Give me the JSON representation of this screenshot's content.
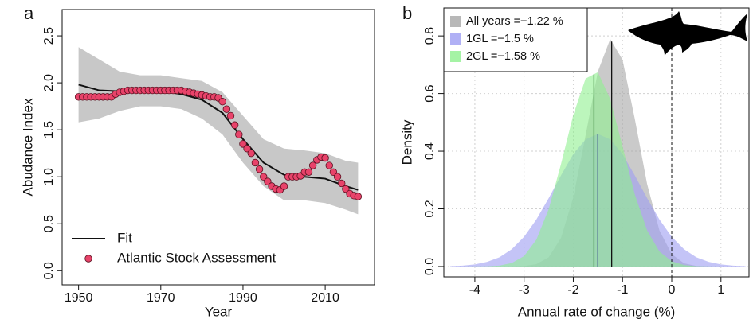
{
  "chart_data": [
    {
      "type": "line",
      "panel_label": "a",
      "xlabel": "Year",
      "ylabel": "Abudance Index",
      "xlim": [
        1946,
        2022
      ],
      "ylim": [
        -0.15,
        2.78
      ],
      "xticks": [
        1950,
        1970,
        1990,
        2010
      ],
      "yticks": [
        {
          "value": 0,
          "label": "0.0"
        },
        0.5,
        {
          "value": 1,
          "label": "1.0"
        },
        1.5,
        {
          "value": 2,
          "label": "2.0"
        },
        2.5
      ],
      "band": {
        "color": "#c8c8c8",
        "x": [
          1950,
          1955,
          1960,
          1965,
          1970,
          1975,
          1980,
          1985,
          1990,
          1995,
          2000,
          2005,
          2010,
          2015,
          2018
        ],
        "upper": [
          2.38,
          2.25,
          2.12,
          2.08,
          2.08,
          2.05,
          2.02,
          1.9,
          1.65,
          1.4,
          1.3,
          1.28,
          1.25,
          1.17,
          1.15
        ],
        "lower": [
          1.58,
          1.62,
          1.7,
          1.75,
          1.75,
          1.72,
          1.62,
          1.45,
          1.15,
          0.9,
          0.75,
          0.75,
          0.72,
          0.65,
          0.6
        ]
      },
      "series": [
        {
          "name": "Fit",
          "style": "line",
          "color": "#111111",
          "x": [
            1950,
            1955,
            1960,
            1965,
            1970,
            1975,
            1980,
            1985,
            1990,
            1995,
            2000,
            2005,
            2010,
            2015,
            2018
          ],
          "values": [
            1.98,
            1.92,
            1.91,
            1.92,
            1.91,
            1.88,
            1.82,
            1.68,
            1.4,
            1.15,
            1.02,
            1.0,
            0.98,
            0.9,
            0.86
          ]
        },
        {
          "name": "Atlantic Stock Assessment",
          "style": "points",
          "color": "#e8436a",
          "x": [
            1950,
            1951,
            1952,
            1953,
            1954,
            1955,
            1956,
            1957,
            1958,
            1959,
            1960,
            1961,
            1962,
            1963,
            1964,
            1965,
            1966,
            1967,
            1968,
            1969,
            1970,
            1971,
            1972,
            1973,
            1974,
            1975,
            1976,
            1977,
            1978,
            1979,
            1980,
            1981,
            1982,
            1983,
            1984,
            1985,
            1986,
            1987,
            1988,
            1989,
            1990,
            1991,
            1992,
            1993,
            1994,
            1995,
            1996,
            1997,
            1998,
            1999,
            2000,
            2001,
            2002,
            2003,
            2004,
            2005,
            2006,
            2007,
            2008,
            2009,
            2010,
            2011,
            2012,
            2013,
            2014,
            2015,
            2016,
            2017,
            2018
          ],
          "values": [
            1.85,
            1.85,
            1.85,
            1.85,
            1.85,
            1.85,
            1.85,
            1.85,
            1.85,
            1.88,
            1.9,
            1.91,
            1.92,
            1.92,
            1.92,
            1.92,
            1.92,
            1.92,
            1.92,
            1.92,
            1.92,
            1.92,
            1.92,
            1.92,
            1.92,
            1.92,
            1.91,
            1.9,
            1.89,
            1.88,
            1.87,
            1.86,
            1.85,
            1.85,
            1.84,
            1.8,
            1.72,
            1.65,
            1.55,
            1.45,
            1.35,
            1.3,
            1.25,
            1.15,
            1.08,
            1.0,
            0.95,
            0.9,
            0.87,
            0.86,
            0.9,
            1.0,
            1.0,
            1.0,
            1.01,
            1.05,
            1.05,
            1.12,
            1.18,
            1.21,
            1.2,
            1.12,
            1.05,
            1.0,
            0.93,
            0.87,
            0.82,
            0.8,
            0.79
          ]
        }
      ]
    },
    {
      "type": "area",
      "panel_label": "b",
      "xlabel": "Annual rate of change (%)",
      "ylabel": "Density",
      "xlim": [
        -4.63,
        1.57
      ],
      "ylim": [
        -0.036,
        0.897
      ],
      "xticks": [
        -4,
        -3,
        -2,
        -1,
        0,
        1
      ],
      "yticks": [
        {
          "value": 0,
          "label": "0.0"
        },
        0.2,
        0.4,
        0.6,
        0.8
      ],
      "grid": true,
      "reference_line": 0,
      "legend": "top-left",
      "x": [
        -4.5,
        -4.25,
        -4,
        -3.75,
        -3.5,
        -3.25,
        -3,
        -2.75,
        -2.5,
        -2.25,
        -2,
        -1.75,
        -1.5,
        -1.25,
        -1,
        -0.75,
        -0.5,
        -0.25,
        0,
        0.25,
        0.5,
        0.75,
        1,
        1.25,
        1.5
      ],
      "series": [
        {
          "name": "All years =−1.22 %",
          "mean": -1.22,
          "color": "#a6a6a6",
          "line_color": "#111111",
          "values": [
            0,
            0,
            0,
            0,
            0,
            0.0002,
            0.0016,
            0.008,
            0.032,
            0.099,
            0.24,
            0.455,
            0.677,
            0.789,
            0.718,
            0.512,
            0.286,
            0.125,
            0.043,
            0.011,
            0.002,
            0.0004,
            0,
            0,
            0
          ]
        },
        {
          "name": "1GL =−1.5 %",
          "mean": -1.5,
          "color": "#9c9cf2",
          "line_color": "#1a237e",
          "values": [
            0.0012,
            0.003,
            0.007,
            0.016,
            0.032,
            0.06,
            0.103,
            0.163,
            0.237,
            0.316,
            0.39,
            0.441,
            0.46,
            0.441,
            0.39,
            0.316,
            0.237,
            0.163,
            0.103,
            0.06,
            0.032,
            0.016,
            0.007,
            0.003,
            0.0012
          ]
        },
        {
          "name": "2GL =−1.58 %",
          "mean": -1.58,
          "color": "#8ff08f",
          "line_color": "#2e7d32",
          "values": [
            0,
            0,
            0.0001,
            0.0007,
            0.003,
            0.012,
            0.036,
            0.093,
            0.199,
            0.355,
            0.526,
            0.652,
            0.674,
            0.581,
            0.417,
            0.25,
            0.125,
            0.052,
            0.018,
            0.005,
            0.001,
            0.0003,
            0,
            0,
            0
          ]
        }
      ]
    }
  ]
}
